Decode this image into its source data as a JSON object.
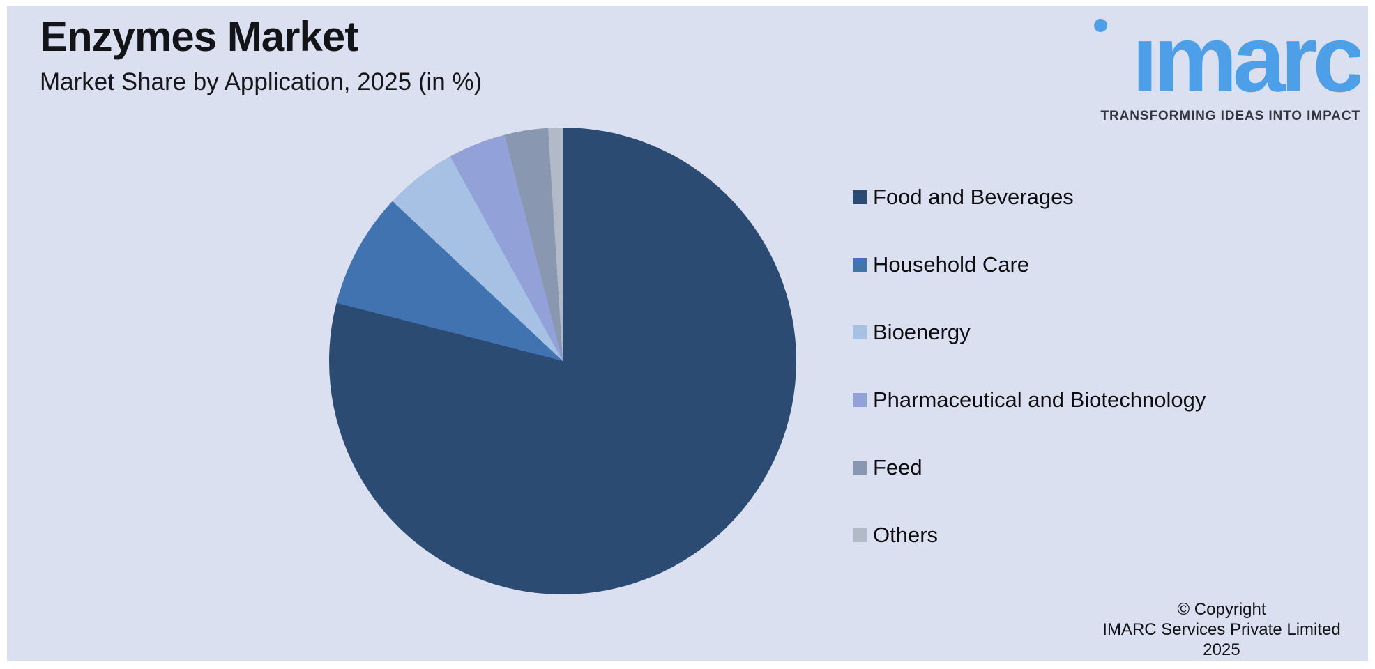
{
  "header": {
    "title": "Enzymes Market",
    "subtitle": "Market Share by Application, 2025 (in %)"
  },
  "logo": {
    "wordmark": "imarc",
    "tagline": "TRANSFORMING IDEAS INTO IMPACT",
    "brand_blue": "#4da0e8"
  },
  "chart_data": {
    "type": "pie",
    "title": "Enzymes Market",
    "subtitle": "Market Share by Application, 2025 (in %)",
    "unit": "%",
    "direction": "clockwise",
    "start_angle_deg": 0,
    "legend_position": "right",
    "segments": [
      {
        "label": "Food and Beverages",
        "value": 79,
        "color": "#2b4b73"
      },
      {
        "label": "Household Care",
        "value": 8,
        "color": "#4173b1"
      },
      {
        "label": "Bioenergy",
        "value": 5,
        "color": "#a7c1e4"
      },
      {
        "label": "Pharmaceutical and Biotechnology",
        "value": 4,
        "color": "#92a2d8"
      },
      {
        "label": "Feed",
        "value": 3,
        "color": "#8997b1"
      },
      {
        "label": "Others",
        "value": 1,
        "color": "#b3bac7"
      }
    ]
  },
  "footer": {
    "copyright_line1": "© Copyright",
    "copyright_line2": "IMARC Services Private Limited 2025"
  },
  "colors": {
    "panel_background": "#dbe0f1",
    "page_border": "#ffffff",
    "text": "#121418"
  }
}
